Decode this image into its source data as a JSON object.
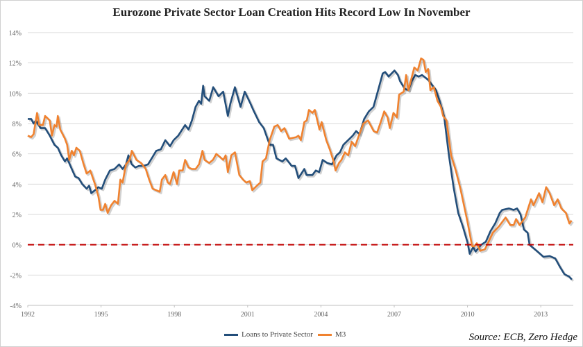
{
  "chart_data": {
    "type": "line",
    "title": "Eurozone Private Sector Loan Creation Hits Record Low In November",
    "source": "Source: ECB,  Zero Hedge",
    "xlabel": "",
    "ylabel": "",
    "xlim": [
      1992,
      2014.33
    ],
    "ylim": [
      -4,
      14
    ],
    "x_ticks": [
      "1992",
      "1995",
      "1998",
      "2001",
      "2004",
      "2007",
      "2010",
      "2013"
    ],
    "y_ticks": [
      "-4%",
      "-2%",
      "0%",
      "2%",
      "4%",
      "6%",
      "8%",
      "10%",
      "12%",
      "14%"
    ],
    "grid": true,
    "legend_position": "bottom",
    "reference_line": {
      "y": 0,
      "color": "#c00000",
      "style": "dashed"
    },
    "series": [
      {
        "name": "Loans to Private Sector",
        "color": "#234e7a",
        "points": [
          [
            1992.0,
            8.3
          ],
          [
            1992.14,
            8.3
          ],
          [
            1992.24,
            8.0
          ],
          [
            1992.33,
            8.2
          ],
          [
            1992.52,
            7.7
          ],
          [
            1992.71,
            7.7
          ],
          [
            1992.9,
            7.2
          ],
          [
            1993.09,
            6.6
          ],
          [
            1993.23,
            6.4
          ],
          [
            1993.37,
            5.9
          ],
          [
            1993.52,
            5.5
          ],
          [
            1993.61,
            5.7
          ],
          [
            1993.8,
            5.0
          ],
          [
            1993.94,
            4.5
          ],
          [
            1994.08,
            4.4
          ],
          [
            1994.23,
            4.0
          ],
          [
            1994.41,
            3.7
          ],
          [
            1994.51,
            3.9
          ],
          [
            1994.6,
            3.4
          ],
          [
            1994.75,
            3.6
          ],
          [
            1994.89,
            3.8
          ],
          [
            1995.03,
            3.7
          ],
          [
            1995.17,
            4.3
          ],
          [
            1995.36,
            4.9
          ],
          [
            1995.55,
            5.0
          ],
          [
            1995.74,
            5.3
          ],
          [
            1995.88,
            5.0
          ],
          [
            1996.02,
            5.3
          ],
          [
            1996.12,
            5.9
          ],
          [
            1996.26,
            5.3
          ],
          [
            1996.4,
            5.1
          ],
          [
            1996.55,
            5.2
          ],
          [
            1996.73,
            5.2
          ],
          [
            1996.92,
            5.3
          ],
          [
            1997.11,
            5.8
          ],
          [
            1997.26,
            6.2
          ],
          [
            1997.45,
            6.3
          ],
          [
            1997.63,
            6.9
          ],
          [
            1997.82,
            6.5
          ],
          [
            1997.97,
            6.9
          ],
          [
            1998.16,
            7.2
          ],
          [
            1998.44,
            7.9
          ],
          [
            1998.58,
            7.6
          ],
          [
            1998.72,
            8.2
          ],
          [
            1998.87,
            9.1
          ],
          [
            1999.01,
            9.5
          ],
          [
            1999.1,
            9.3
          ],
          [
            1999.18,
            10.5
          ],
          [
            1999.24,
            9.8
          ],
          [
            1999.43,
            9.5
          ],
          [
            1999.59,
            10.4
          ],
          [
            1999.81,
            9.8
          ],
          [
            2000.0,
            10.1
          ],
          [
            2000.19,
            8.5
          ],
          [
            2000.29,
            9.3
          ],
          [
            2000.48,
            10.4
          ],
          [
            2000.71,
            9.1
          ],
          [
            2000.88,
            10.1
          ],
          [
            2001.09,
            9.4
          ],
          [
            2001.23,
            8.9
          ],
          [
            2001.47,
            8.1
          ],
          [
            2001.66,
            7.7
          ],
          [
            2001.9,
            6.6
          ],
          [
            2002.04,
            6.6
          ],
          [
            2002.18,
            5.7
          ],
          [
            2002.42,
            5.5
          ],
          [
            2002.56,
            5.7
          ],
          [
            2002.8,
            5.2
          ],
          [
            2002.94,
            5.2
          ],
          [
            2003.08,
            4.4
          ],
          [
            2003.32,
            5.0
          ],
          [
            2003.41,
            4.6
          ],
          [
            2003.65,
            4.6
          ],
          [
            2003.79,
            4.9
          ],
          [
            2003.93,
            4.8
          ],
          [
            2004.07,
            5.6
          ],
          [
            2004.26,
            5.4
          ],
          [
            2004.45,
            5.3
          ],
          [
            2004.64,
            5.9
          ],
          [
            2004.78,
            6.1
          ],
          [
            2004.92,
            6.6
          ],
          [
            2005.11,
            6.9
          ],
          [
            2005.3,
            7.2
          ],
          [
            2005.44,
            7.5
          ],
          [
            2005.58,
            7.3
          ],
          [
            2005.77,
            8.3
          ],
          [
            2005.96,
            8.8
          ],
          [
            2006.15,
            9.1
          ],
          [
            2006.34,
            10.2
          ],
          [
            2006.53,
            11.3
          ],
          [
            2006.63,
            11.4
          ],
          [
            2006.77,
            11.1
          ],
          [
            2007.01,
            11.5
          ],
          [
            2007.15,
            11.2
          ],
          [
            2007.24,
            10.8
          ],
          [
            2007.43,
            10.3
          ],
          [
            2007.58,
            10.2
          ],
          [
            2007.72,
            10.8
          ],
          [
            2007.86,
            11.2
          ],
          [
            2008.0,
            11.1
          ],
          [
            2008.14,
            11.2
          ],
          [
            2008.38,
            10.9
          ],
          [
            2008.57,
            10.5
          ],
          [
            2008.71,
            10.2
          ],
          [
            2008.86,
            9.5
          ],
          [
            2009.05,
            8.4
          ],
          [
            2009.24,
            5.9
          ],
          [
            2009.43,
            3.8
          ],
          [
            2009.62,
            2.1
          ],
          [
            2009.81,
            1.2
          ],
          [
            2010.0,
            0.15
          ],
          [
            2010.09,
            -0.6
          ],
          [
            2010.23,
            -0.15
          ],
          [
            2010.33,
            -0.45
          ],
          [
            2010.56,
            0.0
          ],
          [
            2010.75,
            0.2
          ],
          [
            2010.94,
            0.9
          ],
          [
            2011.13,
            1.4
          ],
          [
            2011.32,
            2.1
          ],
          [
            2011.42,
            2.3
          ],
          [
            2011.7,
            2.4
          ],
          [
            2011.89,
            2.3
          ],
          [
            2012.03,
            2.4
          ],
          [
            2012.17,
            2.0
          ],
          [
            2012.31,
            1.0
          ],
          [
            2012.46,
            0.8
          ],
          [
            2012.54,
            0.0
          ],
          [
            2012.83,
            -0.4
          ],
          [
            2013.11,
            -0.8
          ],
          [
            2013.36,
            -0.75
          ],
          [
            2013.59,
            -0.9
          ],
          [
            2013.78,
            -1.45
          ],
          [
            2013.97,
            -1.95
          ],
          [
            2014.16,
            -2.1
          ],
          [
            2014.27,
            -2.3
          ]
        ]
      },
      {
        "name": "M3",
        "color": "#f0822f",
        "points": [
          [
            1992.0,
            7.2
          ],
          [
            1992.14,
            7.1
          ],
          [
            1992.24,
            7.3
          ],
          [
            1992.38,
            8.7
          ],
          [
            1992.47,
            7.9
          ],
          [
            1992.62,
            7.9
          ],
          [
            1992.71,
            8.5
          ],
          [
            1992.9,
            8.2
          ],
          [
            1992.99,
            7.2
          ],
          [
            1993.09,
            7.9
          ],
          [
            1993.18,
            7.8
          ],
          [
            1993.23,
            8.5
          ],
          [
            1993.33,
            7.6
          ],
          [
            1993.52,
            7.0
          ],
          [
            1993.61,
            6.6
          ],
          [
            1993.7,
            5.6
          ],
          [
            1993.8,
            6.2
          ],
          [
            1993.89,
            5.9
          ],
          [
            1993.99,
            6.4
          ],
          [
            1994.13,
            6.2
          ],
          [
            1994.27,
            5.4
          ],
          [
            1994.41,
            4.7
          ],
          [
            1994.56,
            4.9
          ],
          [
            1994.75,
            4.0
          ],
          [
            1994.89,
            3.2
          ],
          [
            1994.98,
            2.3
          ],
          [
            1995.08,
            2.3
          ],
          [
            1995.17,
            2.7
          ],
          [
            1995.27,
            2.1
          ],
          [
            1995.41,
            2.6
          ],
          [
            1995.55,
            2.9
          ],
          [
            1995.69,
            2.7
          ],
          [
            1995.79,
            4.3
          ],
          [
            1995.88,
            4.1
          ],
          [
            1996.02,
            5.3
          ],
          [
            1996.17,
            5.6
          ],
          [
            1996.26,
            6.2
          ],
          [
            1996.45,
            5.6
          ],
          [
            1996.64,
            5.4
          ],
          [
            1996.83,
            5.0
          ],
          [
            1996.97,
            4.3
          ],
          [
            1997.11,
            3.7
          ],
          [
            1997.26,
            3.6
          ],
          [
            1997.4,
            3.5
          ],
          [
            1997.49,
            4.3
          ],
          [
            1997.63,
            4.6
          ],
          [
            1997.73,
            4.1
          ],
          [
            1997.82,
            4.0
          ],
          [
            1997.97,
            4.8
          ],
          [
            1998.11,
            4.0
          ],
          [
            1998.2,
            4.9
          ],
          [
            1998.34,
            4.9
          ],
          [
            1998.44,
            5.6
          ],
          [
            1998.58,
            5.1
          ],
          [
            1998.72,
            5.0
          ],
          [
            1998.87,
            5.0
          ],
          [
            1999.01,
            5.3
          ],
          [
            1999.15,
            6.2
          ],
          [
            1999.24,
            5.6
          ],
          [
            1999.43,
            5.4
          ],
          [
            1999.58,
            5.6
          ],
          [
            1999.72,
            6.0
          ],
          [
            1999.86,
            5.8
          ],
          [
            2000.0,
            5.6
          ],
          [
            2000.1,
            5.9
          ],
          [
            2000.19,
            4.8
          ],
          [
            2000.33,
            5.9
          ],
          [
            2000.48,
            6.1
          ],
          [
            2000.66,
            4.6
          ],
          [
            2000.81,
            4.3
          ],
          [
            2000.95,
            4.1
          ],
          [
            2001.09,
            4.2
          ],
          [
            2001.19,
            3.6
          ],
          [
            2001.38,
            3.9
          ],
          [
            2001.52,
            4.1
          ],
          [
            2001.61,
            5.5
          ],
          [
            2001.75,
            5.7
          ],
          [
            2001.9,
            6.9
          ],
          [
            2002.09,
            7.8
          ],
          [
            2002.23,
            7.9
          ],
          [
            2002.37,
            7.5
          ],
          [
            2002.51,
            7.7
          ],
          [
            2002.7,
            7.0
          ],
          [
            2002.99,
            7.1
          ],
          [
            2003.08,
            7.2
          ],
          [
            2003.18,
            6.9
          ],
          [
            2003.32,
            8.1
          ],
          [
            2003.42,
            8.2
          ],
          [
            2003.51,
            8.9
          ],
          [
            2003.65,
            8.7
          ],
          [
            2003.75,
            8.9
          ],
          [
            2003.94,
            7.6
          ],
          [
            2004.03,
            8.1
          ],
          [
            2004.22,
            6.9
          ],
          [
            2004.36,
            6.3
          ],
          [
            2004.5,
            5.6
          ],
          [
            2004.6,
            4.9
          ],
          [
            2004.74,
            5.4
          ],
          [
            2004.84,
            5.6
          ],
          [
            2004.98,
            6.1
          ],
          [
            2005.12,
            5.9
          ],
          [
            2005.26,
            6.8
          ],
          [
            2005.4,
            6.5
          ],
          [
            2005.55,
            7.2
          ],
          [
            2005.74,
            8.0
          ],
          [
            2005.93,
            8.2
          ],
          [
            2006.16,
            7.5
          ],
          [
            2006.3,
            7.4
          ],
          [
            2006.45,
            8.1
          ],
          [
            2006.59,
            8.8
          ],
          [
            2006.73,
            8.4
          ],
          [
            2006.82,
            7.7
          ],
          [
            2006.97,
            8.7
          ],
          [
            2007.11,
            8.4
          ],
          [
            2007.2,
            9.9
          ],
          [
            2007.39,
            10.1
          ],
          [
            2007.49,
            11.2
          ],
          [
            2007.58,
            10.2
          ],
          [
            2007.82,
            11.7
          ],
          [
            2007.96,
            11.5
          ],
          [
            2008.1,
            12.3
          ],
          [
            2008.2,
            12.2
          ],
          [
            2008.29,
            11.4
          ],
          [
            2008.39,
            11.6
          ],
          [
            2008.48,
            10.2
          ],
          [
            2008.62,
            10.4
          ],
          [
            2008.77,
            9.5
          ],
          [
            2008.91,
            9.1
          ],
          [
            2009.0,
            8.5
          ],
          [
            2009.14,
            8.2
          ],
          [
            2009.33,
            5.9
          ],
          [
            2009.52,
            4.9
          ],
          [
            2009.71,
            3.7
          ],
          [
            2010.0,
            1.5
          ],
          [
            2010.19,
            -0.1
          ],
          [
            2010.28,
            -0.1
          ],
          [
            2010.38,
            0.1
          ],
          [
            2010.52,
            -0.4
          ],
          [
            2010.71,
            -0.3
          ],
          [
            2010.85,
            0.15
          ],
          [
            2011.04,
            0.8
          ],
          [
            2011.28,
            1.2
          ],
          [
            2011.56,
            1.8
          ],
          [
            2011.75,
            1.3
          ],
          [
            2011.89,
            1.3
          ],
          [
            2011.99,
            1.7
          ],
          [
            2012.13,
            1.3
          ],
          [
            2012.36,
            1.8
          ],
          [
            2012.6,
            3.0
          ],
          [
            2012.7,
            2.6
          ],
          [
            2012.93,
            3.4
          ],
          [
            2013.07,
            2.8
          ],
          [
            2013.22,
            3.8
          ],
          [
            2013.36,
            3.4
          ],
          [
            2013.55,
            2.6
          ],
          [
            2013.69,
            3.0
          ],
          [
            2013.84,
            2.4
          ],
          [
            2014.03,
            2.1
          ],
          [
            2014.17,
            1.4
          ],
          [
            2014.26,
            1.6
          ]
        ]
      }
    ]
  }
}
